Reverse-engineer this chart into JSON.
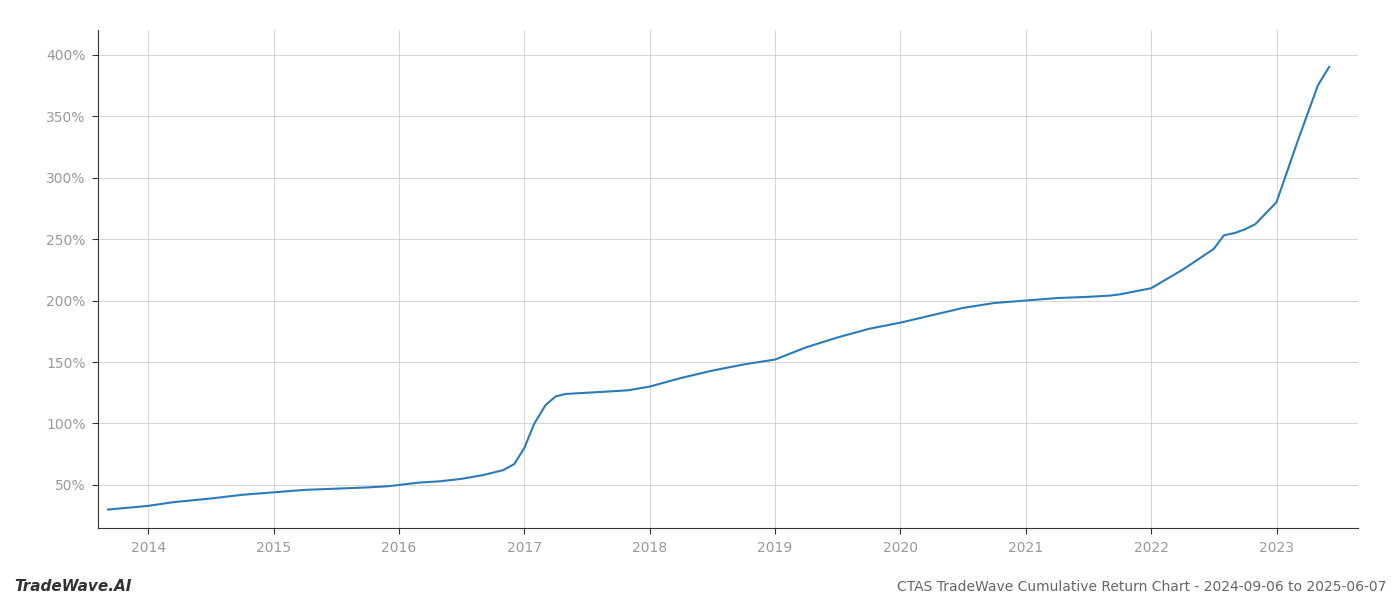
{
  "title": "CTAS TradeWave Cumulative Return Chart - 2024-09-06 to 2025-06-07",
  "watermark": "TradeWave.AI",
  "line_color": "#2b7bb9",
  "background_color": "#ffffff",
  "grid_color": "#d0d0d0",
  "x_years": [
    2014,
    2015,
    2016,
    2017,
    2018,
    2019,
    2020,
    2021,
    2022,
    2023
  ],
  "xlim": [
    2013.6,
    2023.65
  ],
  "ylim": [
    15,
    420
  ],
  "yticks": [
    50,
    100,
    150,
    200,
    250,
    300,
    350,
    400
  ],
  "x_data": [
    2013.68,
    2014.0,
    2014.2,
    2014.5,
    2014.75,
    2015.0,
    2015.25,
    2015.5,
    2015.75,
    2015.92,
    2016.0,
    2016.08,
    2016.17,
    2016.33,
    2016.5,
    2016.67,
    2016.83,
    2016.92,
    2017.0,
    2017.08,
    2017.17,
    2017.25,
    2017.33,
    2017.5,
    2017.67,
    2017.83,
    2018.0,
    2018.25,
    2018.5,
    2018.75,
    2019.0,
    2019.25,
    2019.5,
    2019.75,
    2020.0,
    2020.25,
    2020.5,
    2020.75,
    2021.0,
    2021.25,
    2021.5,
    2021.67,
    2021.75,
    2022.0,
    2022.25,
    2022.5,
    2022.58,
    2022.67,
    2022.75,
    2022.83,
    2023.0,
    2023.17,
    2023.33,
    2023.42
  ],
  "y_data": [
    30,
    33,
    36,
    39,
    42,
    44,
    46,
    47,
    48,
    49,
    50,
    51,
    52,
    53,
    55,
    58,
    62,
    67,
    80,
    100,
    115,
    122,
    124,
    125,
    126,
    127,
    130,
    137,
    143,
    148,
    152,
    162,
    170,
    177,
    182,
    188,
    194,
    198,
    200,
    202,
    203,
    204,
    205,
    210,
    225,
    242,
    253,
    255,
    258,
    262,
    280,
    330,
    375,
    390
  ],
  "title_fontsize": 10,
  "watermark_fontsize": 11,
  "tick_fontsize": 10,
  "axis_label_color": "#999999",
  "title_color": "#666666",
  "watermark_color": "#333333",
  "left_spine_color": "#333333",
  "bottom_spine_color": "#333333"
}
